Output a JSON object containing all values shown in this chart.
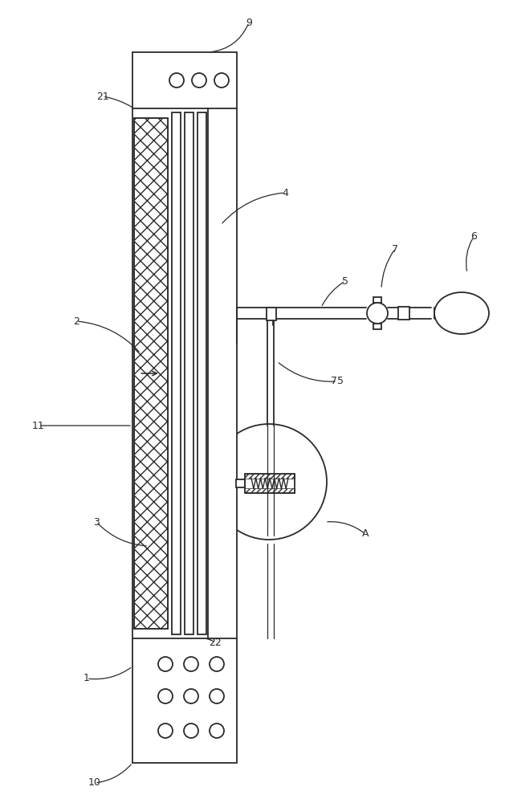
{
  "bg_color": "#ffffff",
  "line_color": "#2a2a2a",
  "fig_width": 6.29,
  "fig_height": 10.0,
  "label_fs": 9
}
